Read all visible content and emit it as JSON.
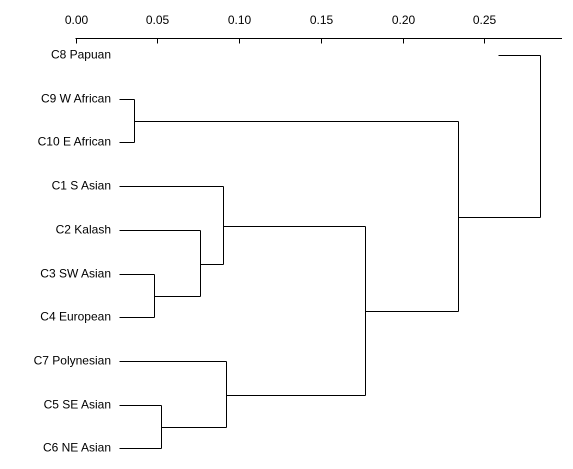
{
  "chart_data": {
    "type": "dendrogram",
    "orientation": "right-to-left",
    "xlim": [
      0,
      0.3
    ],
    "x_ticks": [
      "0.00",
      "0.05",
      "0.10",
      "0.15",
      "0.20",
      "0.25"
    ],
    "x_tick_values": [
      0.0,
      0.05,
      0.1,
      0.15,
      0.2,
      0.25
    ],
    "leaves": [
      "C8 Papuan",
      "C9 W African",
      "C10 E African",
      "C1 S Asian",
      "C2 Kalash",
      "C3 SW Asian",
      "C4 European",
      "C7 Polynesian",
      "C5 SE Asian",
      "C6 NE Asian"
    ],
    "merges": [
      {
        "children": [
          "C3 SW Asian",
          "C4 European"
        ],
        "height": 0.048
      },
      {
        "children": [
          "C5 SE Asian",
          "C6 NE Asian"
        ],
        "height": 0.052
      },
      {
        "children": [
          "C9 W African",
          "C10 E African"
        ],
        "height": 0.036
      },
      {
        "children": [
          "C2 Kalash",
          "merge0"
        ],
        "height": 0.076
      },
      {
        "children": [
          "C1 S Asian",
          "merge3"
        ],
        "height": 0.09
      },
      {
        "children": [
          "C7 Polynesian",
          "merge1"
        ],
        "height": 0.092
      },
      {
        "children": [
          "merge4",
          "merge5"
        ],
        "height": 0.177
      },
      {
        "children": [
          "merge2",
          "merge6"
        ],
        "height": 0.234
      },
      {
        "children": [
          "C8 Papuan",
          "merge7"
        ],
        "height": 0.284
      }
    ]
  }
}
